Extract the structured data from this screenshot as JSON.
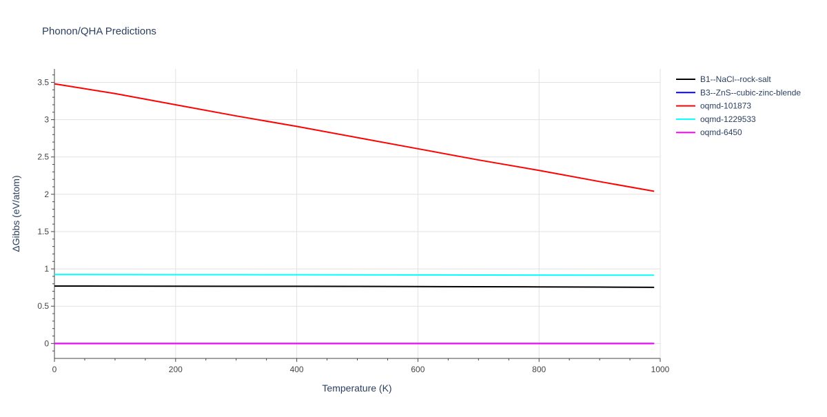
{
  "chart_data": {
    "type": "line",
    "title": "Phonon/QHA Predictions",
    "xlabel": "Temperature (K)",
    "ylabel": "ΔGibbs (eV/atom)",
    "xlim": [
      0,
      1000
    ],
    "ylim": [
      -0.2,
      3.68
    ],
    "x_ticks": [
      0,
      200,
      400,
      600,
      800,
      1000
    ],
    "x_tick_labels": [
      "0",
      "200",
      "400",
      "600",
      "800",
      "1000"
    ],
    "y_ticks": [
      0,
      0.5,
      1,
      1.5,
      2,
      2.5,
      3,
      3.5
    ],
    "y_tick_labels": [
      "0",
      "0.5",
      "1",
      "1.5",
      "2",
      "2.5",
      "3",
      "3.5"
    ],
    "grid": true,
    "legend_position": "top-right",
    "series": [
      {
        "name": "B1--NaCl--rock-salt",
        "color": "#000000",
        "x": [
          0,
          100,
          200,
          300,
          400,
          500,
          600,
          700,
          800,
          900,
          990
        ],
        "y": [
          0.77,
          0.769,
          0.768,
          0.767,
          0.766,
          0.765,
          0.763,
          0.761,
          0.759,
          0.756,
          0.753
        ]
      },
      {
        "name": "B3--ZnS--cubic-zinc-blende",
        "color": "#0000ff",
        "x": [
          0,
          990
        ],
        "y": [
          0,
          0
        ]
      },
      {
        "name": "oqmd-101873",
        "color": "#ff0000",
        "x": [
          0,
          100,
          200,
          300,
          400,
          500,
          600,
          700,
          800,
          900,
          990
        ],
        "y": [
          3.48,
          3.35,
          3.2,
          3.05,
          2.91,
          2.76,
          2.61,
          2.46,
          2.32,
          2.17,
          2.04
        ]
      },
      {
        "name": "oqmd-1229533",
        "color": "#00ffff",
        "x": [
          0,
          100,
          200,
          300,
          400,
          500,
          600,
          700,
          800,
          900,
          990
        ],
        "y": [
          0.925,
          0.924,
          0.923,
          0.922,
          0.921,
          0.92,
          0.919,
          0.918,
          0.917,
          0.916,
          0.915
        ]
      },
      {
        "name": "oqmd-6450",
        "color": "#ff00ff",
        "x": [
          0,
          990
        ],
        "y": [
          0,
          0
        ]
      }
    ]
  }
}
